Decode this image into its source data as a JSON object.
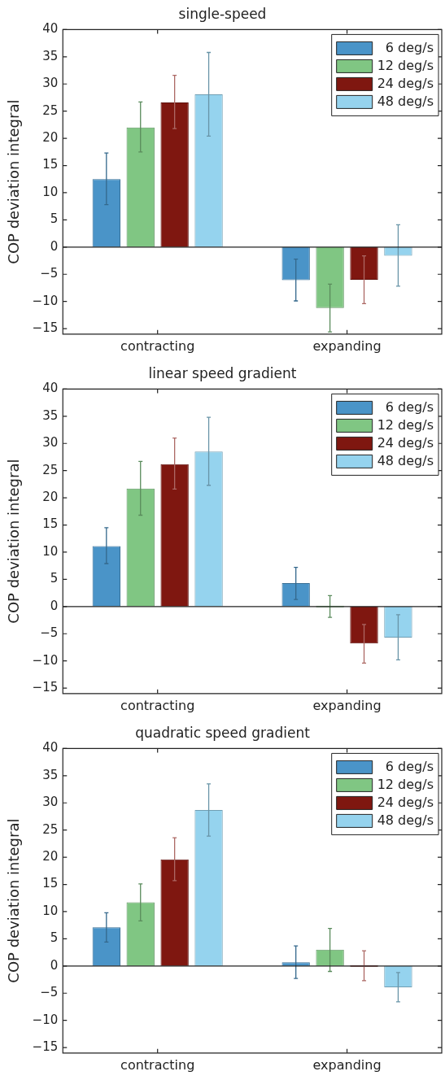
{
  "chart_data": [
    {
      "type": "bar",
      "title": "single-speed",
      "ylabel": "COP deviation integral",
      "categories": [
        "contracting",
        "expanding"
      ],
      "ylim": [
        -16,
        40
      ],
      "yticks": [
        -15,
        -10,
        -5,
        0,
        5,
        10,
        15,
        20,
        25,
        30,
        35,
        40
      ],
      "grid": false,
      "legend": "top right",
      "ref_lines": [
        {
          "axis": "y",
          "value": 0
        }
      ],
      "series": [
        {
          "name": "6 deg/s",
          "color": "#4a94c8",
          "values": [
            12.5,
            -6.1
          ],
          "errors": [
            [
              7.8,
              17.3
            ],
            [
              -9.9,
              -2.2
            ]
          ]
        },
        {
          "name": "12 deg/s",
          "color": "#80c683",
          "values": [
            22,
            -11.2
          ],
          "errors": [
            [
              17.5,
              26.7
            ],
            [
              -15.6,
              -6.8
            ]
          ]
        },
        {
          "name": "24 deg/s",
          "color": "#7f1710",
          "values": [
            26.6,
            -6
          ],
          "errors": [
            [
              21.8,
              31.6
            ],
            [
              -10.4,
              -1.6
            ]
          ]
        },
        {
          "name": "48 deg/s",
          "color": "#95d3ee",
          "values": [
            28.1,
            -1.6
          ],
          "errors": [
            [
              20.4,
              35.8
            ],
            [
              -7.2,
              4.1
            ]
          ]
        }
      ]
    },
    {
      "type": "bar",
      "title": "linear speed gradient",
      "ylabel": "COP deviation integral",
      "categories": [
        "contracting",
        "expanding"
      ],
      "ylim": [
        -16,
        40
      ],
      "yticks": [
        -15,
        -10,
        -5,
        0,
        5,
        10,
        15,
        20,
        25,
        30,
        35,
        40
      ],
      "grid": false,
      "legend": "top right",
      "ref_lines": [
        {
          "axis": "y",
          "value": 0
        }
      ],
      "series": [
        {
          "name": "6 deg/s",
          "color": "#4a94c8",
          "values": [
            11.1,
            4.3
          ],
          "errors": [
            [
              7.9,
              14.5
            ],
            [
              1.3,
              7.2
            ]
          ]
        },
        {
          "name": "12 deg/s",
          "color": "#80c683",
          "values": [
            21.7,
            0
          ],
          "errors": [
            [
              16.8,
              26.7
            ],
            [
              -2,
              2
            ]
          ]
        },
        {
          "name": "24 deg/s",
          "color": "#7f1710",
          "values": [
            26.2,
            -6.8
          ],
          "errors": [
            [
              21.6,
              31
            ],
            [
              -10.4,
              -3.3
            ]
          ]
        },
        {
          "name": "48 deg/s",
          "color": "#95d3ee",
          "values": [
            28.5,
            -5.7
          ],
          "errors": [
            [
              22.3,
              34.8
            ],
            [
              -9.8,
              -1.5
            ]
          ]
        }
      ]
    },
    {
      "type": "bar",
      "title": "quadratic speed gradient",
      "ylabel": "COP deviation integral",
      "categories": [
        "contracting",
        "expanding"
      ],
      "ylim": [
        -16,
        40
      ],
      "yticks": [
        -15,
        -10,
        -5,
        0,
        5,
        10,
        15,
        20,
        25,
        30,
        35,
        40
      ],
      "grid": false,
      "legend": "top right",
      "ref_lines": [
        {
          "axis": "y",
          "value": 0
        }
      ],
      "series": [
        {
          "name": "6 deg/s",
          "color": "#4a94c8",
          "values": [
            7.1,
            0.7
          ],
          "errors": [
            [
              4.4,
              9.8
            ],
            [
              -2.3,
              3.7
            ]
          ]
        },
        {
          "name": "12 deg/s",
          "color": "#80c683",
          "values": [
            11.7,
            3
          ],
          "errors": [
            [
              8.3,
              15.1
            ],
            [
              -1,
              6.9
            ]
          ]
        },
        {
          "name": "24 deg/s",
          "color": "#7f1710",
          "values": [
            19.6,
            0
          ],
          "errors": [
            [
              15.7,
              23.6
            ],
            [
              -2.7,
              2.8
            ]
          ]
        },
        {
          "name": "48 deg/s",
          "color": "#95d3ee",
          "values": [
            28.7,
            -3.9
          ],
          "errors": [
            [
              23.9,
              33.5
            ],
            [
              -6.6,
              -1.2
            ]
          ]
        }
      ]
    }
  ]
}
